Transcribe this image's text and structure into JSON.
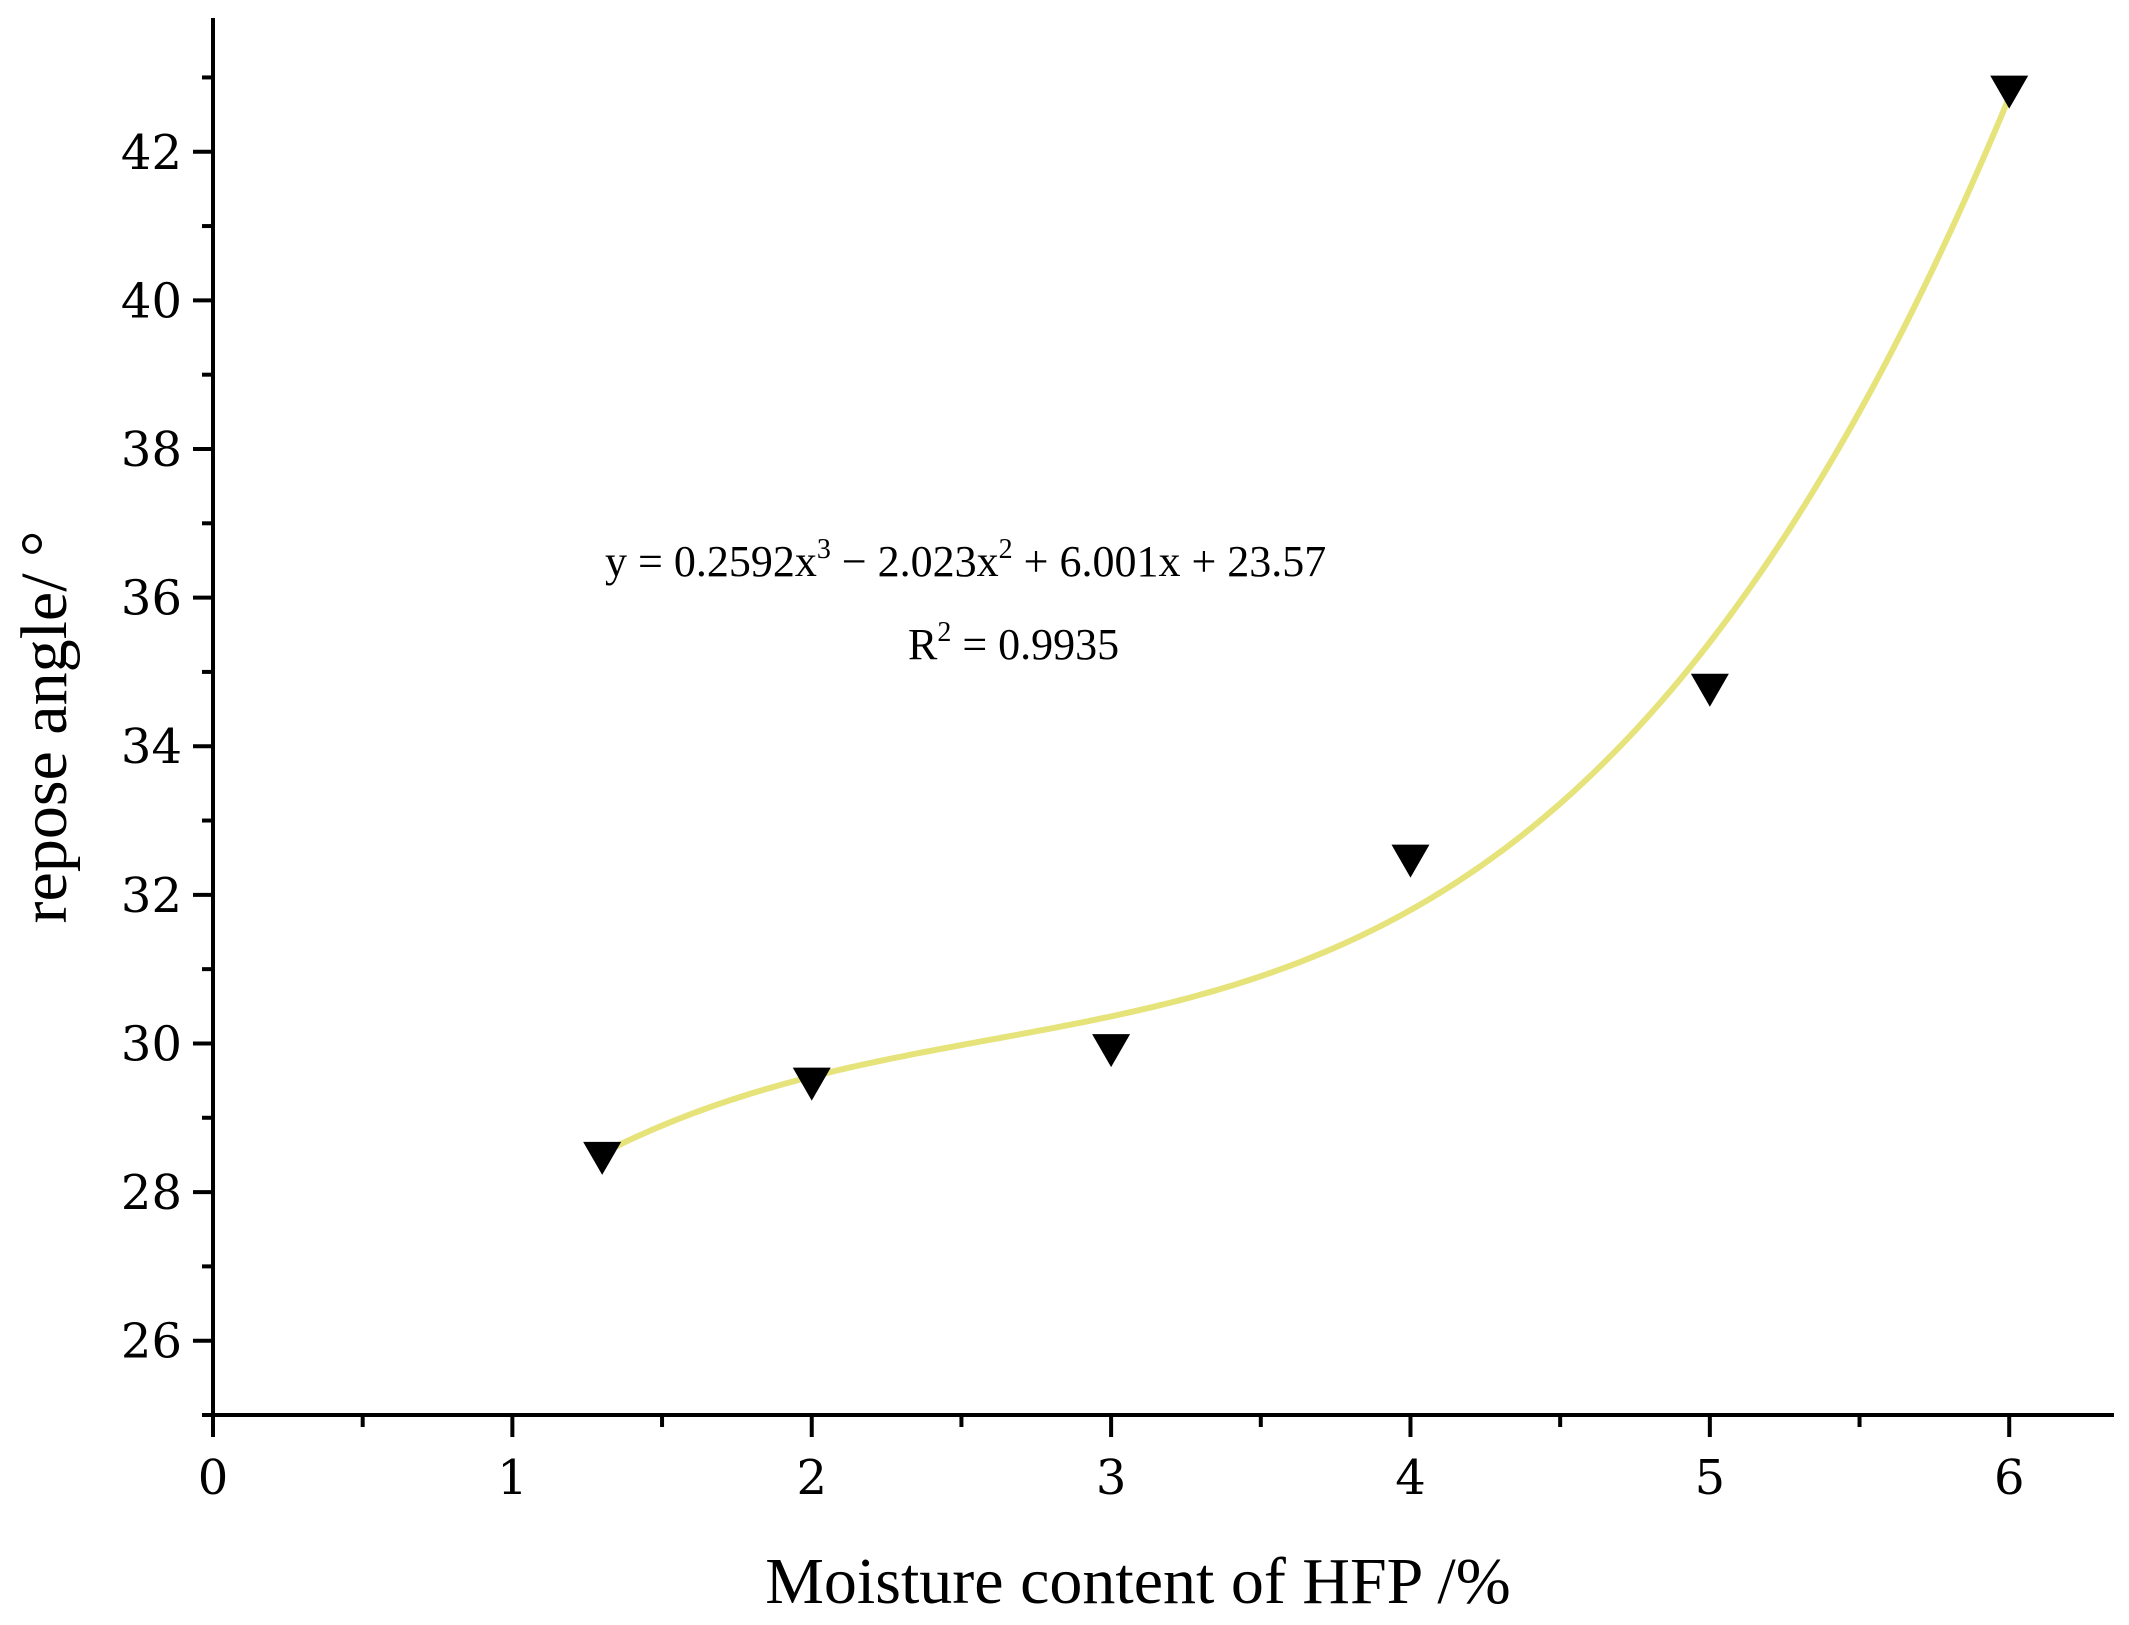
{
  "chart_data": {
    "type": "scatter",
    "title": "",
    "xlabel": "Moisture content of HFP /%",
    "ylabel": "repose angle/ °",
    "xlim": [
      0,
      6.35
    ],
    "ylim": [
      25,
      43.8
    ],
    "x_ticks": [
      0,
      1,
      2,
      3,
      4,
      5,
      6
    ],
    "x_tick_labels": [
      "0",
      "1",
      "2",
      "3",
      "4",
      "5",
      "6"
    ],
    "y_ticks": [
      26,
      28,
      30,
      32,
      34,
      36,
      38,
      40,
      42
    ],
    "y_tick_labels": [
      "26",
      "28",
      "30",
      "32",
      "34",
      "36",
      "38",
      "40",
      "42"
    ],
    "grid": false,
    "legend": "none",
    "series": [
      {
        "marker": "triangle-down",
        "color": "#000000",
        "x": [
          1.3,
          2.0,
          3.0,
          4.0,
          5.0,
          6.0
        ],
        "y": [
          28.5,
          29.5,
          29.95,
          32.5,
          34.8,
          42.85
        ]
      }
    ],
    "fit": {
      "type": "cubic",
      "color": "#e5e37a",
      "coefficients": [
        0.2592,
        -2.023,
        6.001,
        23.57
      ],
      "x_range": [
        1.3,
        6.0
      ]
    },
    "annotations": {
      "equation": {
        "y_part": "y = 0.2592x",
        "exp3": "3",
        "minus_part": " − 2.023x",
        "exp2": "2",
        "tail": " + 6.001x + 23.57"
      },
      "r2": {
        "r": "R",
        "exp": "2",
        "value": " = 0.9935"
      }
    }
  }
}
